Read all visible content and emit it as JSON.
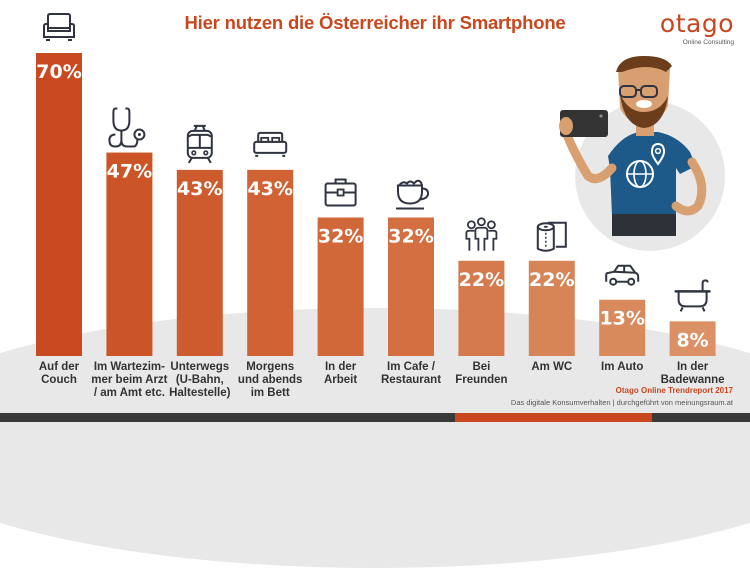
{
  "header": {
    "title": "Hier nutzen die Österreicher ihr Smartphone"
  },
  "logo": {
    "wordmark": "otago",
    "tagline": "Online Consulting"
  },
  "source": {
    "title": "Otago Online Trendreport 2017",
    "subtitle": "Das digitale Konsumverhalten | durchgeführt von meinungsraum.at"
  },
  "colors": {
    "brand": "#c9471f",
    "icon_stroke": "#2f3440",
    "footer": "#3a3a3a",
    "bar_gradient": [
      "#c94a20",
      "#cc5528",
      "#ce5b2d",
      "#d06233",
      "#d16839",
      "#d36f40",
      "#d57a4c",
      "#d78456",
      "#d98a5d",
      "#dc9066"
    ]
  },
  "chart_data": {
    "type": "bar",
    "title": "Hier nutzen die Österreicher ihr Smartphone",
    "xlabel": "",
    "ylabel": "",
    "ylim": [
      0,
      70
    ],
    "grid": false,
    "legend": "none",
    "unit": "%",
    "categories": [
      "Auf der Couch",
      "Im Wartezimmer beim Arzt / am Amt etc.",
      "Unterwegs (U-Bahn, Haltestelle)",
      "Morgens und abends im Bett",
      "In der Arbeit",
      "Im Cafe / Restaurant",
      "Bei Freunden",
      "Am WC",
      "Im Auto",
      "In der Badewanne"
    ],
    "category_lines": [
      [
        "Auf der",
        "Couch"
      ],
      [
        "Im Wartezim-",
        "mer beim Arzt",
        "/ am Amt etc."
      ],
      [
        "Unterwegs",
        "(U-Bahn,",
        "Haltestelle)"
      ],
      [
        "Morgens",
        "und abends",
        "im Bett"
      ],
      [
        "In der",
        "Arbeit"
      ],
      [
        "Im Cafe /",
        "Restaurant"
      ],
      [
        "Bei",
        "Freunden"
      ],
      [
        "Am WC"
      ],
      [
        "Im Auto"
      ],
      [
        "In der",
        "Badewanne"
      ]
    ],
    "values": [
      70,
      47,
      43,
      43,
      32,
      32,
      22,
      22,
      13,
      8
    ],
    "data_labels": [
      "70%",
      "47%",
      "43%",
      "43%",
      "32%",
      "32%",
      "22%",
      "22%",
      "13%",
      "8%"
    ],
    "icons": [
      "armchair-icon",
      "stethoscope-icon",
      "train-icon",
      "bed-icon",
      "briefcase-icon",
      "coffee-cup-icon",
      "group-icon",
      "toilet-paper-icon",
      "car-icon",
      "bathtub-icon"
    ]
  }
}
